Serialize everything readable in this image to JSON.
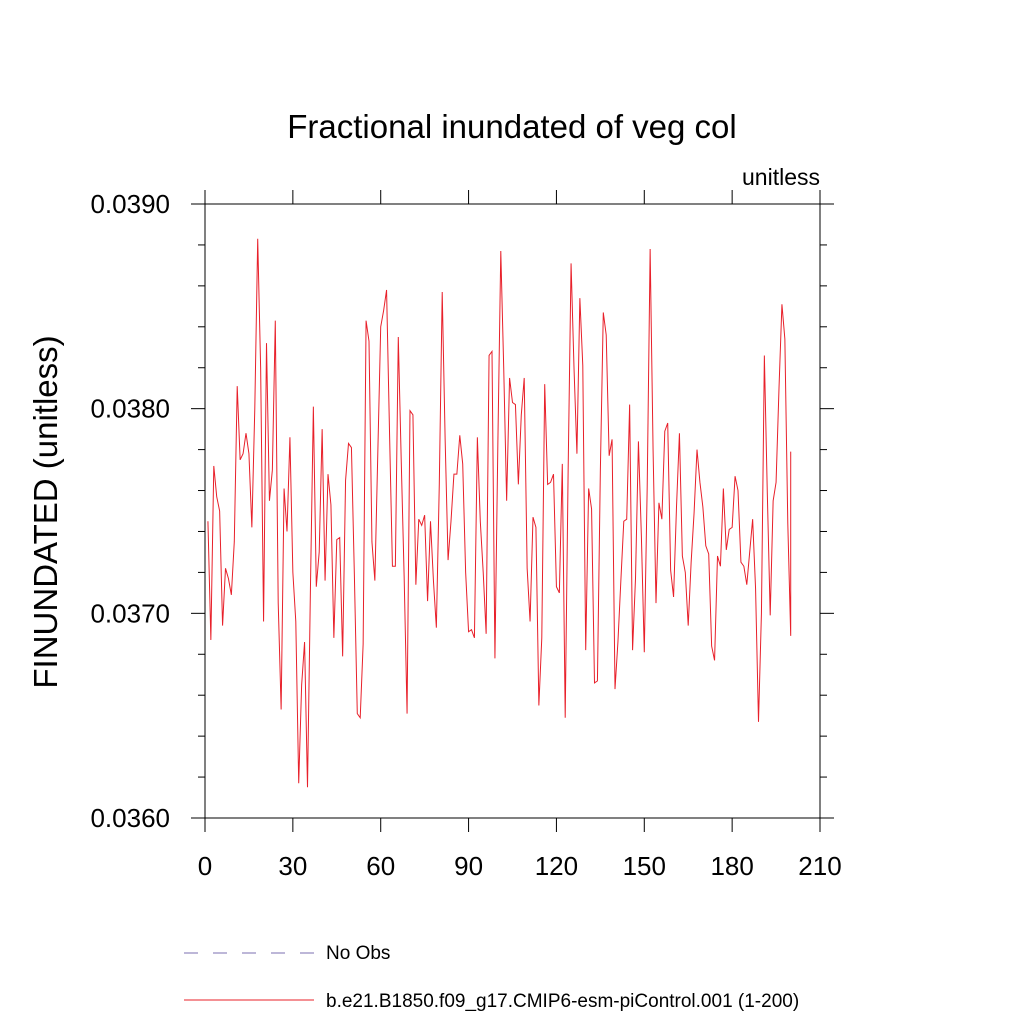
{
  "chart_data": {
    "type": "line",
    "title": "Fractional inundated of veg col",
    "units_label": "unitless",
    "ylabel": "FINUNDATED  (unitless)",
    "xlabel": "",
    "xlim": [
      0,
      210
    ],
    "ylim": [
      0.036,
      0.039
    ],
    "x_ticks": [
      0,
      30,
      60,
      90,
      120,
      150,
      180,
      210
    ],
    "x_tick_labels": [
      "0",
      "30",
      "60",
      "90",
      "120",
      "150",
      "180",
      "210"
    ],
    "y_ticks": [
      0.036,
      0.037,
      0.038,
      0.039
    ],
    "y_tick_labels": [
      "0.0360",
      "0.0370",
      "0.0380",
      "0.0390"
    ],
    "legend": [
      {
        "label": "No Obs",
        "color": "#7b6fb0",
        "style": "dashed"
      },
      {
        "label": "b.e21.B1850.f09_g17.CMIP6-esm-piControl.001 (1-200)",
        "color": "#e8202a",
        "style": "solid"
      }
    ],
    "series": [
      {
        "name": "b.e21.B1850.f09_g17.CMIP6-esm-piControl.001 (1-200)",
        "color": "#e8202a",
        "x_start": 1,
        "x_step": 1,
        "values": [
          0.03745,
          0.03687,
          0.03772,
          0.03757,
          0.0375,
          0.03694,
          0.03722,
          0.03717,
          0.03709,
          0.03735,
          0.03811,
          0.03775,
          0.03778,
          0.03788,
          0.03778,
          0.03742,
          0.038,
          0.03883,
          0.0382,
          0.03696,
          0.03832,
          0.03755,
          0.0377,
          0.03843,
          0.03705,
          0.03653,
          0.03761,
          0.0374,
          0.03786,
          0.0372,
          0.03696,
          0.03617,
          0.03665,
          0.03686,
          0.03615,
          0.03712,
          0.03801,
          0.03713,
          0.0373,
          0.0379,
          0.03716,
          0.03768,
          0.03753,
          0.03688,
          0.03736,
          0.03737,
          0.03679,
          0.03765,
          0.03783,
          0.03781,
          0.03719,
          0.03651,
          0.03649,
          0.03685,
          0.03843,
          0.03833,
          0.03735,
          0.03716,
          0.03778,
          0.0384,
          0.03848,
          0.03858,
          0.03789,
          0.03723,
          0.03723,
          0.03835,
          0.03775,
          0.03718,
          0.03651,
          0.03799,
          0.03797,
          0.03714,
          0.03746,
          0.03743,
          0.03748,
          0.03706,
          0.03745,
          0.03716,
          0.03693,
          0.03763,
          0.03857,
          0.03785,
          0.03726,
          0.03745,
          0.03768,
          0.03768,
          0.03787,
          0.03773,
          0.0372,
          0.03691,
          0.03692,
          0.03688,
          0.03786,
          0.03745,
          0.0372,
          0.0369,
          0.03826,
          0.03828,
          0.03678,
          0.03783,
          0.03877,
          0.0382,
          0.03755,
          0.03815,
          0.03803,
          0.03802,
          0.03763,
          0.03797,
          0.03815,
          0.03722,
          0.03696,
          0.03747,
          0.03742,
          0.03655,
          0.03688,
          0.03812,
          0.03763,
          0.03764,
          0.03768,
          0.03713,
          0.0371,
          0.03773,
          0.03649,
          0.0377,
          0.03871,
          0.0382,
          0.03778,
          0.03854,
          0.03821,
          0.03682,
          0.03761,
          0.03751,
          0.03666,
          0.03667,
          0.0377,
          0.03847,
          0.03836,
          0.03777,
          0.03785,
          0.03663,
          0.03686,
          0.03716,
          0.03745,
          0.03746,
          0.03802,
          0.03682,
          0.03717,
          0.03784,
          0.03738,
          0.03681,
          0.03762,
          0.03878,
          0.0378,
          0.03705,
          0.03754,
          0.03746,
          0.03789,
          0.03793,
          0.03721,
          0.03708,
          0.03752,
          0.03788,
          0.03728,
          0.0372,
          0.03694,
          0.03725,
          0.03749,
          0.0378,
          0.03764,
          0.03752,
          0.03733,
          0.03729,
          0.03684,
          0.03677,
          0.03728,
          0.03723,
          0.03761,
          0.03731,
          0.03741,
          0.03742,
          0.03767,
          0.0376,
          0.03725,
          0.03723,
          0.03714,
          0.0373,
          0.03746,
          0.03712,
          0.03647,
          0.037,
          0.03826,
          0.03759,
          0.03699,
          0.03755,
          0.03764,
          0.0381,
          0.03851,
          0.03834,
          0.03744,
          0.03689
        ]
      }
    ],
    "extra_point": {
      "x": 200,
      "y": 0.03779
    }
  }
}
